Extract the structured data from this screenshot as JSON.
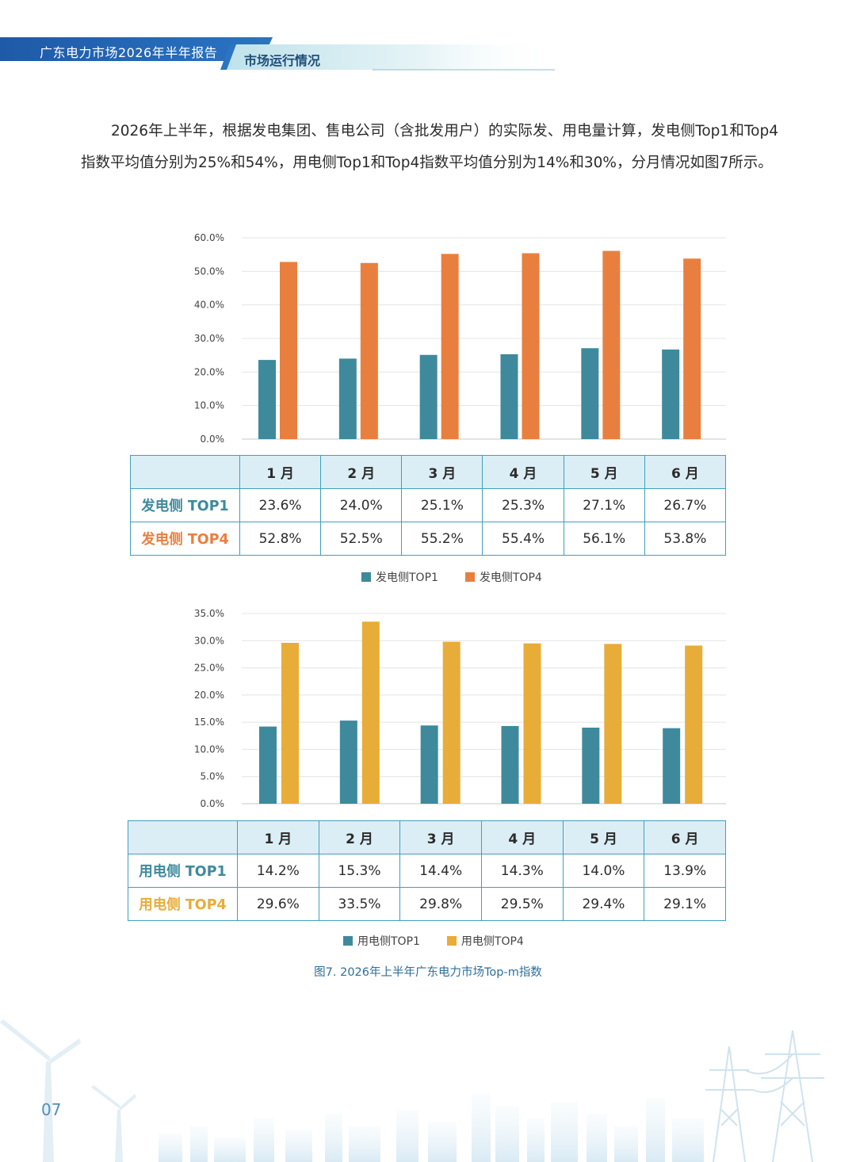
{
  "header": {
    "report_title": "广东电力市场2026年半年报告",
    "section_title": "市场运行情况"
  },
  "intro": "2026年上半年，根据发电集团、售电公司（含批发用户）的实际发、用电量计算，发电侧Top1和Top4指数平均值分别为25%和54%，用电侧Top1和Top4指数平均值分别为14%和30%，分月情况如图7所示。",
  "chart_data": [
    {
      "type": "bar",
      "categories": [
        "1 月",
        "2 月",
        "3 月",
        "4 月",
        "5 月",
        "6 月"
      ],
      "series": [
        {
          "name": "发电侧TOP1",
          "values": [
            23.6,
            24.0,
            25.1,
            25.3,
            27.1,
            26.7
          ],
          "color": "#3e8a9c"
        },
        {
          "name": "发电侧TOP4",
          "values": [
            52.8,
            52.5,
            55.2,
            55.4,
            56.1,
            53.8
          ],
          "color": "#e97f3f"
        }
      ],
      "ylim": [
        0,
        60
      ],
      "yticks": [
        "0.0%",
        "10.0%",
        "20.0%",
        "30.0%",
        "40.0%",
        "50.0%",
        "60.0%"
      ],
      "table_rows": [
        {
          "label": "发电侧 TOP1",
          "color": "#3e8a9c",
          "values": [
            "23.6%",
            "24.0%",
            "25.1%",
            "25.3%",
            "27.1%",
            "26.7%"
          ]
        },
        {
          "label": "发电侧 TOP4",
          "color": "#e97f3f",
          "values": [
            "52.8%",
            "52.5%",
            "55.2%",
            "55.4%",
            "56.1%",
            "53.8%"
          ]
        }
      ],
      "grid": true,
      "legend": "bottom"
    },
    {
      "type": "bar",
      "categories": [
        "1 月",
        "2 月",
        "3 月",
        "4 月",
        "5 月",
        "6 月"
      ],
      "series": [
        {
          "name": "用电侧TOP1",
          "values": [
            14.2,
            15.3,
            14.4,
            14.3,
            14.0,
            13.9
          ],
          "color": "#3e8a9c"
        },
        {
          "name": "用电侧TOP4",
          "values": [
            29.6,
            33.5,
            29.8,
            29.5,
            29.4,
            29.1
          ],
          "color": "#e8ac38"
        }
      ],
      "ylim": [
        0,
        35
      ],
      "yticks": [
        "0.0%",
        "5.0%",
        "10.0%",
        "15.0%",
        "20.0%",
        "25.0%",
        "30.0%",
        "35.0%"
      ],
      "table_rows": [
        {
          "label": "用电侧 TOP1",
          "color": "#3e8a9c",
          "values": [
            "14.2%",
            "15.3%",
            "14.4%",
            "14.3%",
            "14.0%",
            "13.9%"
          ]
        },
        {
          "label": "用电侧 TOP4",
          "color": "#e8ac38",
          "values": [
            "29.6%",
            "33.5%",
            "29.8%",
            "29.5%",
            "29.4%",
            "29.1%"
          ]
        }
      ],
      "grid": true,
      "legend": "bottom"
    }
  ],
  "caption": "图7. 2026年上半年广东电力市场Top-m指数",
  "page_number": "07"
}
